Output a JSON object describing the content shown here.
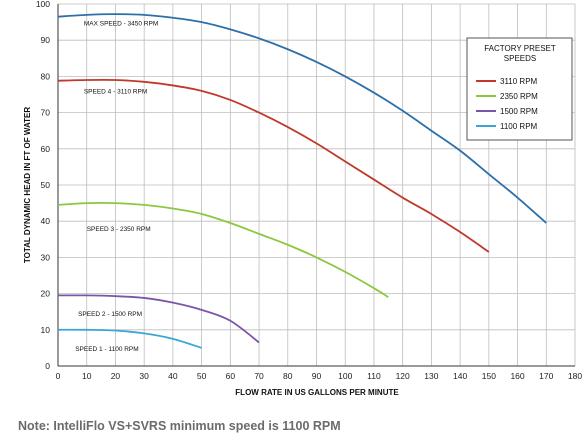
{
  "chart_data": {
    "type": "line",
    "xlabel": "FLOW RATE IN US GALLONS PER MINUTE",
    "ylabel": "TOTAL DYNAMIC HEAD IN FT OF WATER",
    "xlim": [
      0,
      180
    ],
    "ylim": [
      0,
      100
    ],
    "xticks": [
      "0",
      "10",
      "20",
      "30",
      "40",
      "50",
      "60",
      "70",
      "80",
      "90",
      "100",
      "110",
      "120",
      "130",
      "140",
      "150",
      "160",
      "170",
      "180"
    ],
    "yticks": [
      "0",
      "10",
      "20",
      "30",
      "40",
      "50",
      "60",
      "70",
      "80",
      "90",
      "100"
    ],
    "grid": true,
    "legend": {
      "title": "FACTORY PRESET SPEEDS",
      "placement": "right",
      "entries": [
        "3110 RPM",
        "2350 RPM",
        "1500 RPM",
        "1100 RPM"
      ]
    },
    "series": [
      {
        "name": "MAX SPEED - 3450 RPM",
        "color": "#2e6fa8",
        "x": [
          0,
          10,
          20,
          30,
          40,
          50,
          60,
          70,
          80,
          90,
          100,
          110,
          120,
          130,
          140,
          150,
          160,
          170
        ],
        "y": [
          96.5,
          97,
          97.2,
          97,
          96.2,
          95,
          93,
          90.5,
          87.5,
          84,
          80,
          75.5,
          70.5,
          65,
          59.5,
          53,
          46.5,
          39.5
        ]
      },
      {
        "name": "3110 RPM",
        "color": "#c0392b",
        "x": [
          0,
          10,
          20,
          30,
          40,
          50,
          60,
          70,
          80,
          90,
          100,
          110,
          120,
          130,
          140,
          150
        ],
        "y": [
          78.8,
          79,
          79,
          78.5,
          77.5,
          76,
          73.5,
          70,
          66,
          61.5,
          56.5,
          51.5,
          46.5,
          42,
          37,
          31.5
        ]
      },
      {
        "name": "2350 RPM",
        "color": "#8dc63f",
        "x": [
          0,
          10,
          20,
          30,
          40,
          50,
          60,
          70,
          80,
          90,
          100,
          110,
          115
        ],
        "y": [
          44.5,
          45,
          45,
          44.5,
          43.5,
          42,
          39.5,
          36.5,
          33.5,
          30,
          26,
          21.5,
          19
        ]
      },
      {
        "name": "1500 RPM",
        "color": "#7d55a8",
        "x": [
          0,
          10,
          20,
          30,
          40,
          50,
          60,
          70
        ],
        "y": [
          19.5,
          19.5,
          19.3,
          18.8,
          17.5,
          15.5,
          12.5,
          6.5
        ]
      },
      {
        "name": "1100 RPM",
        "color": "#3aa6d8",
        "x": [
          0,
          10,
          20,
          30,
          40,
          50
        ],
        "y": [
          10,
          10,
          9.8,
          9,
          7.5,
          5
        ]
      }
    ],
    "annotations": [
      {
        "text": "MAX SPEED - 3450 RPM",
        "x": 9,
        "y": 94
      },
      {
        "text": "SPEED 4 - 3110 RPM",
        "x": 9,
        "y": 75.3
      },
      {
        "text": "SPEED 3 - 2350 RPM",
        "x": 10,
        "y": 37.3
      },
      {
        "text": "SPEED 2 - 1500 RPM",
        "x": 7,
        "y": 13.8
      },
      {
        "text": "SPEED 1 - 1100 RPM",
        "x": 6,
        "y": 4.2
      }
    ],
    "note": "Note: IntelliFlo VS+SVRS minimum speed is 1100 RPM"
  }
}
